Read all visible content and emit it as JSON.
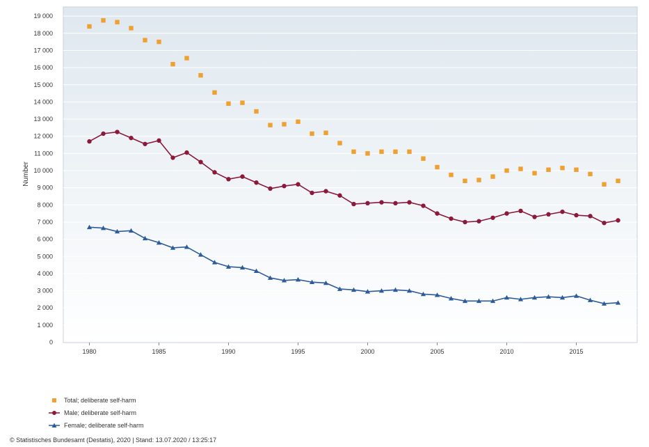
{
  "chart_data": {
    "type": "line",
    "title": "",
    "xlabel": "",
    "ylabel": "Number",
    "xlim": [
      1978.3,
      1981.5
    ],
    "ylim": [
      0,
      19500
    ],
    "x_ticks": [
      "1980",
      "1985",
      "1990",
      "1995",
      "2000",
      "2005",
      "2010",
      "2015"
    ],
    "y_ticks": [
      "0",
      "1 000",
      "2 000",
      "3 000",
      "4 000",
      "5 000",
      "6 000",
      "7 000",
      "8 000",
      "9 000",
      "10 000",
      "11 000",
      "12 000",
      "13 000",
      "14 000",
      "15 000",
      "16 000",
      "17 000",
      "18 000",
      "19 000"
    ],
    "grid": true,
    "legend_position": "bottom-left",
    "x": [
      1980,
      1981,
      1982,
      1983,
      1984,
      1985,
      1986,
      1987,
      1988,
      1989,
      1990,
      1991,
      1992,
      1993,
      1994,
      1995,
      1996,
      1997,
      1998,
      1999,
      2000,
      2001,
      2002,
      2003,
      2004,
      2005,
      2006,
      2007,
      2008,
      2009,
      2010,
      2011,
      2012,
      2013,
      2014,
      2015,
      2016,
      2017,
      2018
    ],
    "series": [
      {
        "name": "Total; deliberate self-harm",
        "color": "#f0a030",
        "marker": "square",
        "values": [
          18400,
          18750,
          18650,
          18300,
          17600,
          17500,
          16200,
          16550,
          15550,
          14550,
          13900,
          13950,
          13450,
          12650,
          12700,
          12850,
          12150,
          12200,
          11600,
          11100,
          11000,
          11100,
          11100,
          11100,
          10700,
          10200,
          9750,
          9400,
          9450,
          9650,
          10000,
          10100,
          9850,
          10050,
          10150,
          10050,
          9800,
          9200,
          9400
        ]
      },
      {
        "name": "Male; deliberate self-harm",
        "color": "#8b1a3a",
        "marker": "circle",
        "values": [
          11700,
          12150,
          12250,
          11900,
          11550,
          11750,
          10750,
          11050,
          10500,
          9900,
          9500,
          9650,
          9300,
          8950,
          9100,
          9200,
          8700,
          8800,
          8550,
          8050,
          8100,
          8150,
          8100,
          8150,
          7950,
          7500,
          7200,
          7000,
          7050,
          7250,
          7500,
          7650,
          7300,
          7450,
          7600,
          7400,
          7350,
          6950,
          7100
        ]
      },
      {
        "name": "Female; deliberate self-harm",
        "color": "#2e5c9a",
        "marker": "triangle",
        "values": [
          6700,
          6650,
          6450,
          6500,
          6050,
          5800,
          5500,
          5550,
          5100,
          4650,
          4400,
          4350,
          4150,
          3750,
          3600,
          3650,
          3500,
          3450,
          3100,
          3050,
          2950,
          3000,
          3050,
          3000,
          2800,
          2750,
          2550,
          2400,
          2400,
          2400,
          2600,
          2500,
          2600,
          2650,
          2600,
          2700,
          2450,
          2250,
          2300
        ]
      }
    ]
  },
  "footer": {
    "credit": "© Statistisches Bundesamt (Destatis), 2020 | Stand: 13.07.2020 / 13:25:17"
  }
}
